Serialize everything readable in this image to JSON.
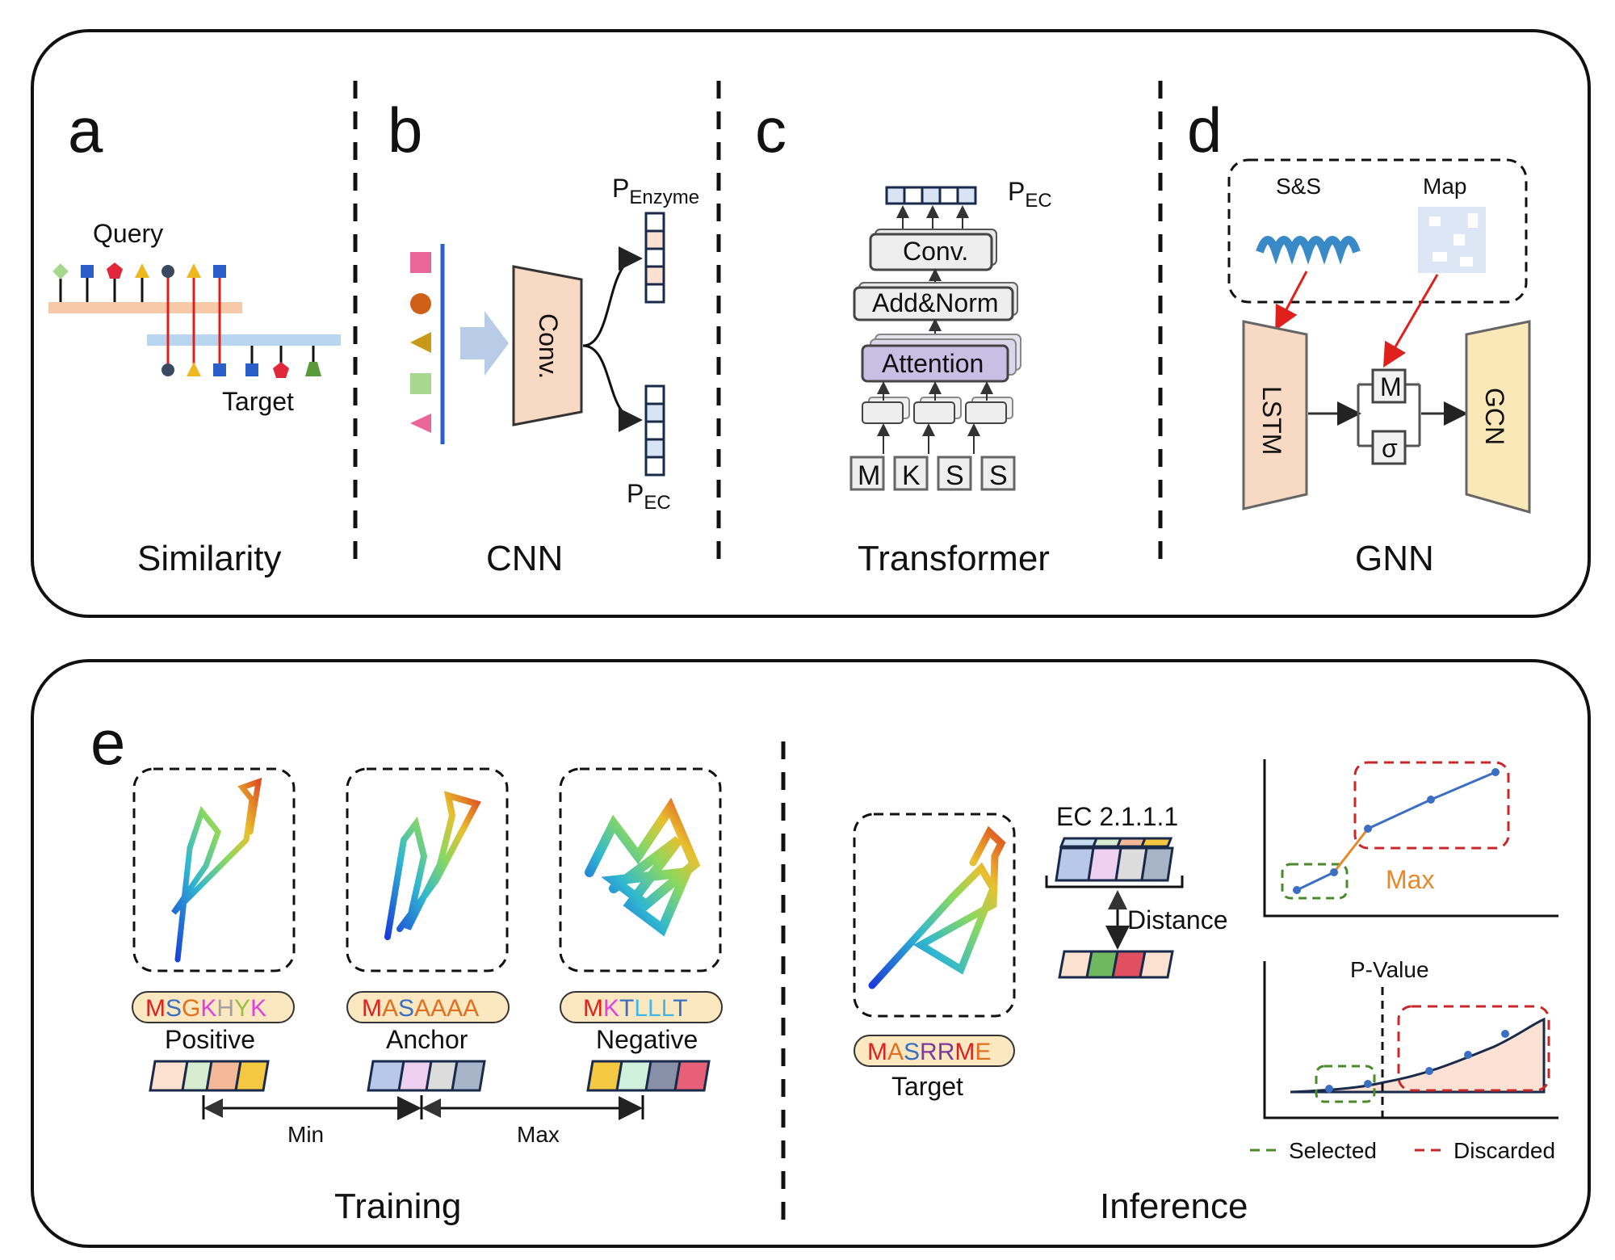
{
  "top": {
    "a": {
      "letter": "a",
      "caption": "Similarity",
      "query": "Query",
      "target": "Target"
    },
    "b": {
      "letter": "b",
      "caption": "CNN",
      "conv": "Conv.",
      "p_enzyme_main": "P",
      "p_enzyme_sub": "Enzyme",
      "p_ec_main": "P",
      "p_ec_sub": "EC"
    },
    "c": {
      "letter": "c",
      "caption": "Transformer",
      "conv": "Conv.",
      "addnorm": "Add&Norm",
      "attention": "Attention",
      "p_main": "P",
      "p_sub": "EC",
      "tokens": [
        {
          "t": "M",
          "color": "#e0201c"
        },
        {
          "t": "K",
          "color": "#e040e0"
        },
        {
          "t": "S",
          "color": "#3a6fc4"
        },
        {
          "t": "S",
          "color": "#3a6fc4"
        }
      ]
    },
    "d": {
      "letter": "d",
      "caption": "GNN",
      "ss": "S&S",
      "map": "Map",
      "lstm": "LSTM",
      "gcn": "GCN",
      "m": "M",
      "sigma": "σ"
    }
  },
  "bottom": {
    "e": {
      "letter": "e"
    },
    "training": {
      "caption": "Training",
      "positive": {
        "seq": [
          {
            "t": "M",
            "c": "#e0201c"
          },
          {
            "t": "S",
            "c": "#3a6fc4"
          },
          {
            "t": "G",
            "c": "#e07020"
          },
          {
            "t": "K",
            "c": "#e040e0"
          },
          {
            "t": "H",
            "c": "#a0a0a0"
          },
          {
            "t": "Y",
            "c": "#9ac040"
          },
          {
            "t": "K",
            "c": "#e040e0"
          }
        ],
        "label": "Positive"
      },
      "anchor": {
        "seq": [
          {
            "t": "M",
            "c": "#e0201c"
          },
          {
            "t": "A",
            "c": "#e07020"
          },
          {
            "t": "S",
            "c": "#3a6fc4"
          },
          {
            "t": "A",
            "c": "#e07020"
          },
          {
            "t": "A",
            "c": "#e07020"
          },
          {
            "t": "A",
            "c": "#e07020"
          },
          {
            "t": "A",
            "c": "#e07020"
          }
        ],
        "label": "Anchor"
      },
      "negative": {
        "seq": [
          {
            "t": "M",
            "c": "#e0201c"
          },
          {
            "t": "K",
            "c": "#e040e0"
          },
          {
            "t": "T",
            "c": "#3a6fc4"
          },
          {
            "t": "L",
            "c": "#40b8e8"
          },
          {
            "t": "L",
            "c": "#40b8e8"
          },
          {
            "t": "L",
            "c": "#40b8e8"
          },
          {
            "t": "T",
            "c": "#3a6fc4"
          }
        ],
        "label": "Negative"
      },
      "min": "Min",
      "max": "Max"
    },
    "inference": {
      "caption": "Inference",
      "target_seq": [
        {
          "t": "M",
          "c": "#e0201c"
        },
        {
          "t": "A",
          "c": "#e07020"
        },
        {
          "t": "S",
          "c": "#3a6fc4"
        },
        {
          "t": "R",
          "c": "#7a3aa0"
        },
        {
          "t": "R",
          "c": "#7a3aa0"
        },
        {
          "t": "M",
          "c": "#e0201c"
        },
        {
          "t": "E",
          "c": "#e07020"
        }
      ],
      "target": "Target",
      "ec": "EC 2.1.1.1",
      "distance": "Distance",
      "max_label": "Max",
      "pvalue": "P-Value",
      "legend_selected": "Selected",
      "legend_discarded": "Discarded"
    }
  },
  "colors": {
    "selected": "#4a8a2a",
    "discarded": "#c8282a",
    "line": "#3a6fc4",
    "accent": "#e8882a"
  }
}
